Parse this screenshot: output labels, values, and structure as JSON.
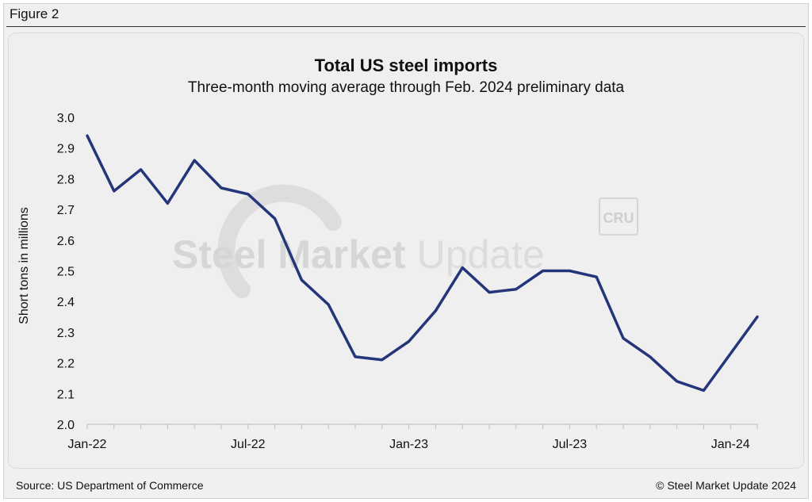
{
  "figure_label": "Figure 2",
  "footer": {
    "source": "Source: US Department of Commerce",
    "copyright": "© Steel Market Update 2024"
  },
  "watermark": {
    "brand_bold": "Steel Market",
    "brand_light": "Update",
    "badge": "CRU"
  },
  "colors": {
    "line": "#25357a",
    "background": "#f0f0f0",
    "axis": "#bdbdbd",
    "watermark": "#d9d9d9"
  },
  "chart_data": {
    "type": "line",
    "title": "Total US steel imports",
    "subtitle": "Three-month moving average through Feb. 2024 preliminary data",
    "xlabel": "",
    "ylabel": "Short tons in millions",
    "ylim": [
      2.0,
      3.0
    ],
    "yticks": [
      "2.0",
      "2.1",
      "2.2",
      "2.3",
      "2.4",
      "2.5",
      "2.6",
      "2.7",
      "2.8",
      "2.9",
      "3.0"
    ],
    "x": [
      "Jan-22",
      "Feb-22",
      "Mar-22",
      "Apr-22",
      "May-22",
      "Jun-22",
      "Jul-22",
      "Aug-22",
      "Sep-22",
      "Oct-22",
      "Nov-22",
      "Dec-22",
      "Jan-23",
      "Feb-23",
      "Mar-23",
      "Apr-23",
      "May-23",
      "Jun-23",
      "Jul-23",
      "Aug-23",
      "Sep-23",
      "Oct-23",
      "Nov-23",
      "Dec-23",
      "Jan-24",
      "Feb-24"
    ],
    "xtick_labels": [
      {
        "index": 0,
        "label": "Jan-22"
      },
      {
        "index": 6,
        "label": "Jul-22"
      },
      {
        "index": 12,
        "label": "Jan-23"
      },
      {
        "index": 18,
        "label": "Jul-23"
      },
      {
        "index": 24,
        "label": "Jan-24"
      }
    ],
    "series": [
      {
        "name": "Total US steel imports",
        "values": [
          2.94,
          2.76,
          2.83,
          2.72,
          2.86,
          2.77,
          2.75,
          2.67,
          2.47,
          2.39,
          2.22,
          2.21,
          2.27,
          2.37,
          2.51,
          2.43,
          2.44,
          2.5,
          2.5,
          2.48,
          2.28,
          2.22,
          2.14,
          2.11,
          2.23,
          2.35
        ]
      }
    ]
  }
}
